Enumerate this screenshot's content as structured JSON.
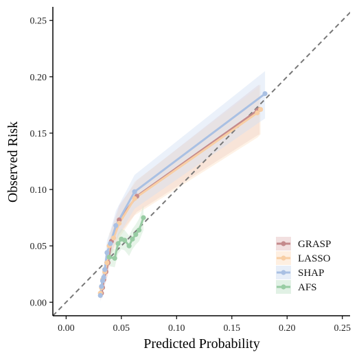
{
  "chart_data": {
    "type": "line",
    "title": "",
    "xlabel": "Predicted Probability",
    "ylabel": "Observed Risk",
    "xlim": [
      -0.012,
      0.257
    ],
    "ylim": [
      -0.012,
      0.262
    ],
    "x_ticks": [
      0.0,
      0.05,
      0.1,
      0.15,
      0.2,
      0.25
    ],
    "x_tick_labels": [
      "0.00",
      "0.05",
      "0.10",
      "0.15",
      "0.20",
      "0.25"
    ],
    "y_ticks": [
      0.0,
      0.05,
      0.1,
      0.15,
      0.2,
      0.25
    ],
    "y_tick_labels": [
      "0.00",
      "0.05",
      "0.10",
      "0.15",
      "0.20",
      "0.25"
    ],
    "grid": false,
    "reference_line": "identity (dashed)",
    "legend_position": "bottom-right",
    "series": [
      {
        "name": "GRASP",
        "color": "#c48a8c",
        "band_color": "#e7c6c6",
        "x": [
          0.032,
          0.033,
          0.034,
          0.036,
          0.038,
          0.041,
          0.048,
          0.064,
          0.173,
          0.175
        ],
        "y": [
          0.008,
          0.013,
          0.02,
          0.027,
          0.035,
          0.054,
          0.073,
          0.094,
          0.17,
          0.171
        ],
        "lower": [
          0.002,
          0.006,
          0.012,
          0.018,
          0.025,
          0.043,
          0.06,
          0.08,
          0.148,
          0.149
        ],
        "upper": [
          0.015,
          0.021,
          0.029,
          0.036,
          0.046,
          0.065,
          0.086,
          0.108,
          0.192,
          0.193
        ]
      },
      {
        "name": "LASSO",
        "color": "#f8cea4",
        "band_color": "#fde2c8",
        "x": [
          0.031,
          0.032,
          0.033,
          0.035,
          0.037,
          0.039,
          0.043,
          0.048,
          0.062,
          0.173,
          0.176
        ],
        "y": [
          0.008,
          0.013,
          0.02,
          0.027,
          0.035,
          0.05,
          0.057,
          0.07,
          0.092,
          0.168,
          0.171
        ],
        "lower": [
          0.002,
          0.006,
          0.012,
          0.018,
          0.025,
          0.04,
          0.046,
          0.057,
          0.077,
          0.146,
          0.149
        ],
        "upper": [
          0.015,
          0.021,
          0.029,
          0.036,
          0.046,
          0.061,
          0.068,
          0.083,
          0.107,
          0.19,
          0.193
        ]
      },
      {
        "name": "SHAP",
        "color": "#a9c0e3",
        "band_color": "#d3e0f3",
        "x": [
          0.031,
          0.032,
          0.033,
          0.034,
          0.035,
          0.037,
          0.04,
          0.045,
          0.062,
          0.18
        ],
        "y": [
          0.006,
          0.014,
          0.019,
          0.022,
          0.029,
          0.044,
          0.052,
          0.068,
          0.098,
          0.185
        ],
        "lower": [
          0.0,
          0.007,
          0.011,
          0.013,
          0.019,
          0.033,
          0.041,
          0.055,
          0.083,
          0.163
        ],
        "upper": [
          0.012,
          0.022,
          0.028,
          0.031,
          0.039,
          0.055,
          0.063,
          0.081,
          0.113,
          0.205
        ]
      },
      {
        "name": "AFS",
        "color": "#98cca3",
        "band_color": "#c9e6cf",
        "x": [
          0.039,
          0.044,
          0.047,
          0.05,
          0.053,
          0.057,
          0.06,
          0.063,
          0.066,
          0.07
        ],
        "y": [
          0.04,
          0.039,
          0.052,
          0.056,
          0.055,
          0.05,
          0.056,
          0.06,
          0.064,
          0.075
        ],
        "lower": [
          0.032,
          0.031,
          0.043,
          0.047,
          0.046,
          0.041,
          0.047,
          0.051,
          0.054,
          0.064
        ],
        "upper": [
          0.048,
          0.047,
          0.061,
          0.065,
          0.064,
          0.059,
          0.065,
          0.069,
          0.074,
          0.086
        ]
      }
    ]
  }
}
